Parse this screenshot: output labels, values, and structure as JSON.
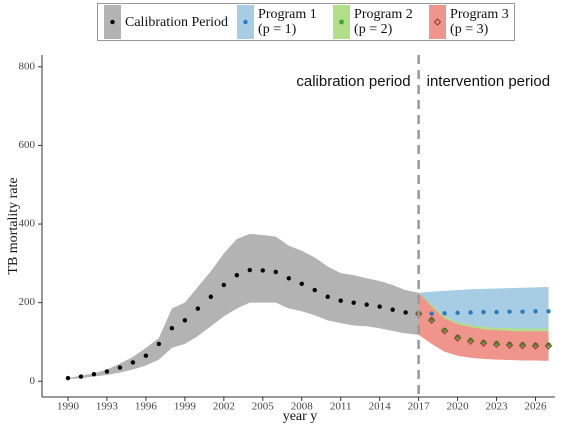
{
  "chart_data": {
    "type": "band",
    "xlabel": "year y",
    "ylabel": "TB mortality rate",
    "xlim": [
      1988,
      2027.5
    ],
    "ylim": [
      -40,
      830
    ],
    "xticks": [
      1990,
      1993,
      1996,
      1999,
      2002,
      2005,
      2008,
      2011,
      2014,
      2017,
      2020,
      2023,
      2026
    ],
    "yticks": [
      0,
      200,
      400,
      600,
      800
    ],
    "vline": 2017,
    "annotations": [
      "calibration period",
      "intervention period"
    ],
    "series": [
      {
        "name": "Calibration Period",
        "color": "#000000",
        "band_color": "#b3b3b3",
        "marker": "dot",
        "x": [
          1990,
          1991,
          1992,
          1993,
          1994,
          1995,
          1996,
          1997,
          1998,
          1999,
          2000,
          2001,
          2002,
          2003,
          2004,
          2005,
          2006,
          2007,
          2008,
          2009,
          2010,
          2011,
          2012,
          2013,
          2014,
          2015,
          2016,
          2017
        ],
        "values": [
          8,
          12,
          18,
          25,
          35,
          48,
          65,
          95,
          135,
          155,
          185,
          215,
          245,
          270,
          283,
          282,
          278,
          262,
          248,
          232,
          215,
          205,
          200,
          195,
          190,
          182,
          175,
          172
        ],
        "upper": [
          8,
          14,
          20,
          30,
          45,
          62,
          85,
          110,
          185,
          200,
          240,
          280,
          325,
          362,
          375,
          372,
          368,
          345,
          332,
          315,
          292,
          275,
          270,
          262,
          255,
          245,
          232,
          225
        ],
        "lower": [
          5,
          8,
          12,
          16,
          22,
          30,
          40,
          55,
          85,
          95,
          115,
          140,
          165,
          185,
          200,
          200,
          200,
          185,
          178,
          168,
          155,
          148,
          142,
          140,
          135,
          128,
          122,
          118
        ]
      },
      {
        "name": "Program 1 (p = 1)",
        "color": "#2b7bba",
        "band_color": "#a6cde3",
        "marker": "dot",
        "x": [
          2017,
          2018,
          2019,
          2020,
          2021,
          2022,
          2023,
          2024,
          2025,
          2026,
          2027
        ],
        "values": [
          172,
          172,
          173,
          174,
          175,
          176,
          176,
          177,
          177,
          178,
          178
        ],
        "upper": [
          225,
          228,
          230,
          232,
          234,
          235,
          236,
          237,
          238,
          239,
          240
        ],
        "lower": [
          118,
          125,
          128,
          130,
          131,
          131,
          132,
          132,
          132,
          132,
          132
        ]
      },
      {
        "name": "Program 2 (p = 2)",
        "color": "#33a02c",
        "band_color": "#b2df8a",
        "marker": "star",
        "x": [
          2017,
          2018,
          2019,
          2020,
          2021,
          2022,
          2023,
          2024,
          2025,
          2026,
          2027
        ],
        "values": [
          172,
          157,
          130,
          113,
          105,
          100,
          97,
          95,
          94,
          93,
          93
        ],
        "upper": [
          225,
          195,
          165,
          150,
          143,
          138,
          136,
          135,
          134,
          134,
          134
        ],
        "lower": [
          118,
          100,
          82,
          72,
          66,
          63,
          61,
          60,
          59,
          59,
          58
        ]
      },
      {
        "name": "Program 3 (p = 3)",
        "color": "#8b3a2a",
        "band_color": "#f0958c",
        "marker": "diamond",
        "x": [
          2017,
          2018,
          2019,
          2020,
          2021,
          2022,
          2023,
          2024,
          2025,
          2026,
          2027
        ],
        "values": [
          172,
          155,
          128,
          110,
          102,
          97,
          94,
          92,
          91,
          90,
          90
        ],
        "upper": [
          225,
          190,
          160,
          145,
          138,
          132,
          130,
          128,
          127,
          127,
          127
        ],
        "lower": [
          118,
          95,
          75,
          65,
          60,
          57,
          55,
          54,
          53,
          53,
          52
        ]
      }
    ]
  }
}
